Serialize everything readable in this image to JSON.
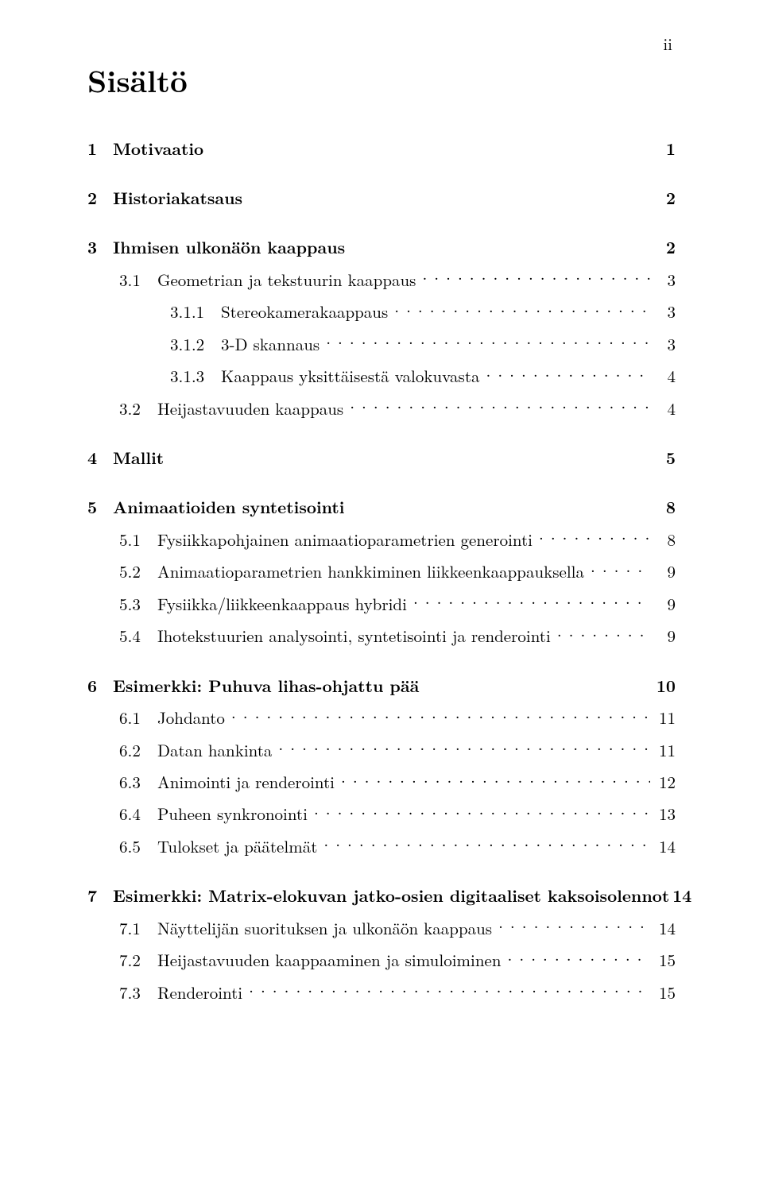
{
  "page_roman": "ii",
  "title": "Sisältö",
  "entries": [
    {
      "level": "chapter",
      "num": "1",
      "label": "Motivaatio",
      "page": "1",
      "leader": false
    },
    {
      "level": "chapter",
      "num": "2",
      "label": "Historiakatsaus",
      "page": "2",
      "leader": false
    },
    {
      "level": "chapter",
      "num": "3",
      "label": "Ihmisen ulkonäön kaappaus",
      "page": "2",
      "leader": false
    },
    {
      "level": "section",
      "num": "3.1",
      "label": "Geometrian ja tekstuurin kaappaus",
      "page": "3",
      "leader": true
    },
    {
      "level": "subsection",
      "num": "3.1.1",
      "label": "Stereokamerakaappaus",
      "page": "3",
      "leader": true
    },
    {
      "level": "subsection",
      "num": "3.1.2",
      "label": "3-D skannaus",
      "page": "3",
      "leader": true
    },
    {
      "level": "subsection",
      "num": "3.1.3",
      "label": "Kaappaus yksittäisestä valokuvasta",
      "page": "4",
      "leader": true
    },
    {
      "level": "section",
      "num": "3.2",
      "label": "Heijastavuuden kaappaus",
      "page": "4",
      "leader": true
    },
    {
      "level": "chapter",
      "num": "4",
      "label": "Mallit",
      "page": "5",
      "leader": false
    },
    {
      "level": "chapter",
      "num": "5",
      "label": "Animaatioiden syntetisointi",
      "page": "8",
      "leader": false
    },
    {
      "level": "section",
      "num": "5.1",
      "label": "Fysiikkapohjainen animaatioparametrien generointi",
      "page": "8",
      "leader": true
    },
    {
      "level": "section",
      "num": "5.2",
      "label": "Animaatioparametrien hankkiminen liikkeenkaappauksella",
      "page": "9",
      "leader": true
    },
    {
      "level": "section",
      "num": "5.3",
      "label": "Fysiikka/liikkeenkaappaus hybridi",
      "page": "9",
      "leader": true
    },
    {
      "level": "section",
      "num": "5.4",
      "label": "Ihotekstuurien analysointi, syntetisointi ja renderointi",
      "page": "9",
      "leader": true
    },
    {
      "level": "chapter",
      "num": "6",
      "label": "Esimerkki: Puhuva lihas-ohjattu pää",
      "page": "10",
      "leader": false
    },
    {
      "level": "section",
      "num": "6.1",
      "label": "Johdanto",
      "page": "11",
      "leader": true
    },
    {
      "level": "section",
      "num": "6.2",
      "label": "Datan hankinta",
      "page": "11",
      "leader": true
    },
    {
      "level": "section",
      "num": "6.3",
      "label": "Animointi ja renderointi",
      "page": "12",
      "leader": true
    },
    {
      "level": "section",
      "num": "6.4",
      "label": "Puheen synkronointi",
      "page": "13",
      "leader": true
    },
    {
      "level": "section",
      "num": "6.5",
      "label": "Tulokset ja päätelmät",
      "page": "14",
      "leader": true
    },
    {
      "level": "chapter",
      "num": "7",
      "label": "Esimerkki: Matrix-elokuvan jatko-osien digitaaliset kaksoisolennot",
      "page": "14",
      "leader": false
    },
    {
      "level": "section",
      "num": "7.1",
      "label": "Näyttelijän suorituksen ja ulkonäön kaappaus",
      "page": "14",
      "leader": true
    },
    {
      "level": "section",
      "num": "7.2",
      "label": "Heijastavuuden kaappaaminen ja simuloiminen",
      "page": "15",
      "leader": true
    },
    {
      "level": "section",
      "num": "7.3",
      "label": "Renderointi",
      "page": "15",
      "leader": true
    }
  ]
}
